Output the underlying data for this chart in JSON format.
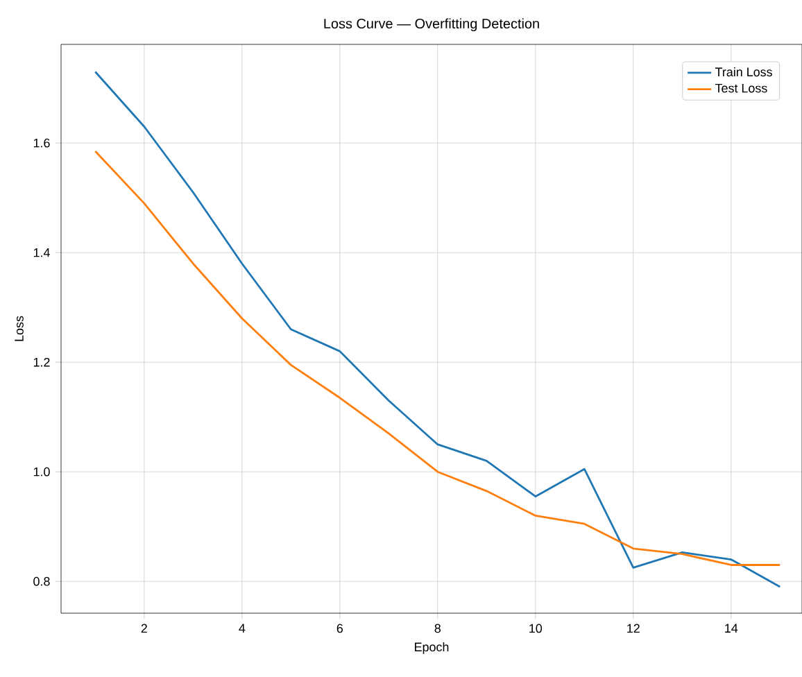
{
  "chart_data": {
    "type": "line",
    "title": "Loss Curve — Overfitting Detection",
    "xlabel": "Epoch",
    "ylabel": "Loss",
    "x": [
      1,
      2,
      3,
      4,
      5,
      6,
      7,
      8,
      9,
      10,
      11,
      12,
      13,
      14,
      15
    ],
    "series": [
      {
        "name": "Train Loss",
        "color": "#1f77b4",
        "values": [
          1.73,
          1.63,
          1.51,
          1.38,
          1.26,
          1.22,
          1.13,
          1.05,
          1.02,
          0.955,
          1.005,
          0.825,
          0.853,
          0.84,
          0.79
        ]
      },
      {
        "name": "Test Loss",
        "color": "#ff7f0e",
        "values": [
          1.585,
          1.49,
          1.38,
          1.28,
          1.195,
          1.135,
          1.07,
          1.0,
          0.965,
          0.92,
          0.905,
          0.86,
          0.85,
          0.83,
          0.83
        ]
      }
    ],
    "xlim": [
      0.3,
      15.45
    ],
    "ylim": [
      0.742,
      1.78
    ],
    "xticks": [
      2,
      4,
      6,
      8,
      10,
      12,
      14
    ],
    "yticks": [
      0.8,
      {
        "value": 1.0,
        "label": "1.0"
      },
      1.2,
      1.4,
      1.6
    ],
    "grid": true,
    "legend": "top right"
  }
}
